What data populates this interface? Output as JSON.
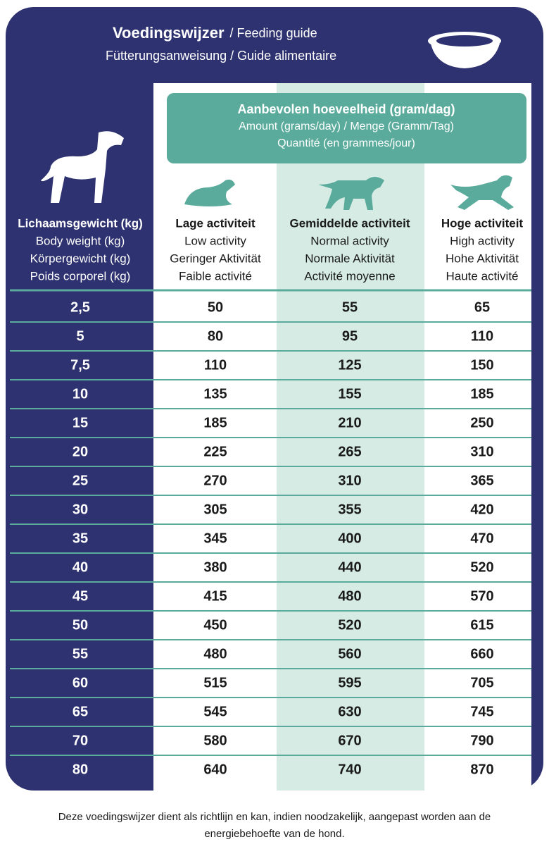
{
  "header": {
    "title": "Voedingswijzer",
    "title_suffix": "/ Feeding guide",
    "subtitle": "Fütterungsanweisung / Guide alimentaire"
  },
  "amount_box": {
    "lines": [
      "Aanbevolen hoeveelheid (gram/dag)",
      "Amount (grams/day) / Menge (Gramm/Tag)",
      "Quantité (en grammes/jour)"
    ]
  },
  "columns": [
    {
      "lines": [
        "Lichaamsgewicht (kg)",
        "Body weight (kg)",
        "Körpergewicht (kg)",
        "Poids corporel (kg)"
      ]
    },
    {
      "lines": [
        "Lage activiteit",
        "Low activity",
        "Geringer Aktivität",
        "Faible activité"
      ]
    },
    {
      "lines": [
        "Gemiddelde activiteit",
        "Normal activity",
        "Normale Aktivität",
        "Activité moyenne"
      ]
    },
    {
      "lines": [
        "Hoge activiteit",
        "High activity",
        "Hohe Aktivität",
        "Haute activité"
      ]
    }
  ],
  "table": {
    "rows": [
      [
        "2,5",
        50,
        55,
        65
      ],
      [
        "5",
        80,
        95,
        110
      ],
      [
        "7,5",
        110,
        125,
        150
      ],
      [
        "10",
        135,
        155,
        185
      ],
      [
        "15",
        185,
        210,
        250
      ],
      [
        "20",
        225,
        265,
        310
      ],
      [
        "25",
        270,
        310,
        365
      ],
      [
        "30",
        305,
        355,
        420
      ],
      [
        "35",
        345,
        400,
        470
      ],
      [
        "40",
        380,
        440,
        520
      ],
      [
        "45",
        415,
        480,
        570
      ],
      [
        "50",
        450,
        520,
        615
      ],
      [
        "55",
        480,
        560,
        660
      ],
      [
        "60",
        515,
        595,
        705
      ],
      [
        "65",
        545,
        630,
        745
      ],
      [
        "70",
        580,
        670,
        790
      ],
      [
        "80",
        640,
        740,
        870
      ]
    ]
  },
  "footer": {
    "lines": [
      "Deze voedingswijzer dient als richtlijn en kan, indien noodzakelijk, aangepast worden aan de",
      "energiebehoefte van de hond."
    ]
  }
}
